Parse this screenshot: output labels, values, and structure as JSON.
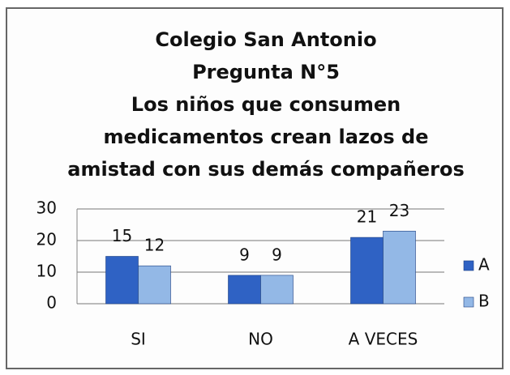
{
  "chart_data": {
    "type": "bar",
    "title": [
      "Colegio San Antonio",
      "Pregunta N°5",
      "Los niños que consumen",
      "medicamentos crean lazos de",
      "amistad con sus demás compañeros"
    ],
    "categories": [
      "SI",
      "NO",
      "A VECES"
    ],
    "series": [
      {
        "name": "A",
        "color": "#2f62c4",
        "values": [
          15,
          9,
          21
        ]
      },
      {
        "name": "B",
        "color": "#93b8e6",
        "values": [
          12,
          9,
          23
        ]
      }
    ],
    "ylim": [
      0,
      30
    ],
    "yticks": [
      0,
      10,
      20,
      30
    ],
    "grid": true,
    "legend": "right"
  }
}
